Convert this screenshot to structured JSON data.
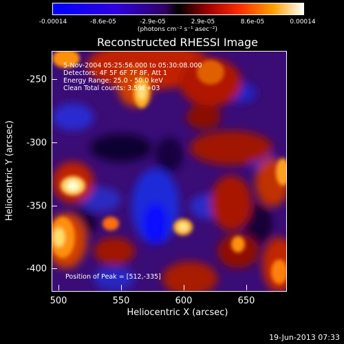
{
  "colorbar": {
    "ticks": [
      "-0.00014",
      "-8.6e-05",
      "-2.9e-05",
      "2.9e-05",
      "8.6e-05",
      "0.00014"
    ],
    "units": "(photons cm⁻² s⁻¹ asec⁻²)"
  },
  "plot": {
    "title": "Reconstructed RHESSI Image",
    "info_lines": [
      "5-Nov-2004 05:25:56.000 to 05:30:08.000",
      "Detectors: 4F 5F 6F 7F 8F, Att 1",
      "Energy Range: 25.0 - 50.0 keV",
      "Clean     Total counts: 3.59E+03"
    ],
    "peak_text": "Position of Peak = [512,-335]",
    "x_ticks": [
      "500",
      "550",
      "600",
      "650"
    ],
    "y_ticks": [
      "-250",
      "-300",
      "-350",
      "-400"
    ],
    "xlabel": "Heliocentric X (arcsec)",
    "ylabel": "Heliocentric Y (arcsec)"
  },
  "footer": "19-Jun-2013 07:33"
}
